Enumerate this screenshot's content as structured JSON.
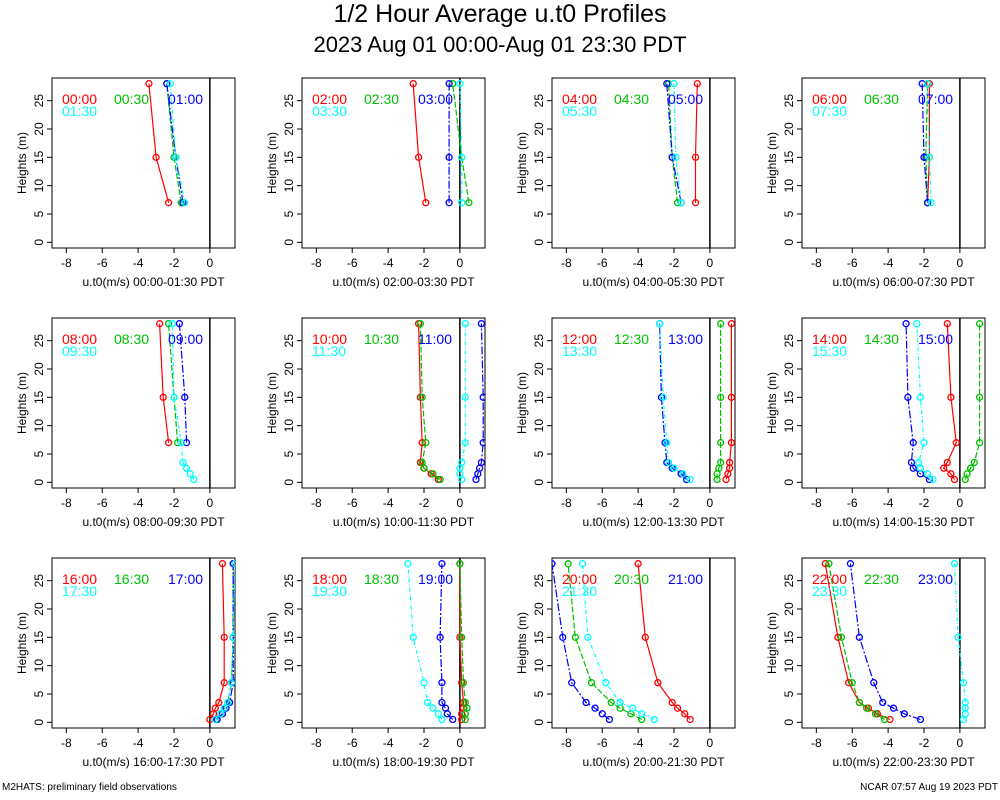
{
  "title_line1": "1/2 Hour Average u.t0 Profiles",
  "title_line2": "2023 Aug 01 00:00-Aug 01 23:30 PDT",
  "footer_left": "M2HATS: preliminary field observations",
  "footer_right": "NCAR 07:57 Aug 19 2023 PDT",
  "colors": {
    "first": "#ff0000",
    "second": "#00c000",
    "third": "#0000ff",
    "fourth": "#00ffff"
  },
  "chart_data": {
    "type": "line",
    "ylabel": "Heights (m)",
    "xlim": [
      -8.8,
      1.4
    ],
    "ylim": [
      -1,
      29
    ],
    "xticks": [
      -8,
      -6,
      -4,
      -2,
      0
    ],
    "yticks": [
      0,
      5,
      10,
      15,
      20,
      25
    ],
    "panels": [
      {
        "xlabel": "u.t0(m/s) 00:00-01:30 PDT",
        "series": [
          {
            "name": "00:00",
            "color": "#ff0000",
            "x": [
              -2.3,
              -3.0,
              -3.4
            ],
            "y": [
              7,
              15,
              28
            ]
          },
          {
            "name": "00:30",
            "color": "#00c000",
            "x": [
              -1.6,
              -2.0,
              -2.4
            ],
            "y": [
              7,
              15,
              28
            ]
          },
          {
            "name": "01:00",
            "color": "#0000ff",
            "x": [
              -1.5,
              -1.9,
              -2.4
            ],
            "y": [
              7,
              15,
              28
            ]
          },
          {
            "name": "01:30",
            "color": "#00ffff",
            "x": [
              -1.4,
              -1.9,
              -2.2
            ],
            "y": [
              7,
              15,
              28
            ]
          }
        ]
      },
      {
        "xlabel": "u.t0(m/s) 02:00-03:30 PDT",
        "series": [
          {
            "name": "02:00",
            "color": "#ff0000",
            "x": [
              -1.9,
              -2.3,
              -2.6
            ],
            "y": [
              7,
              15,
              28
            ]
          },
          {
            "name": "02:30",
            "color": "#00c000",
            "x": [
              0.5,
              0.1,
              -0.4
            ],
            "y": [
              7,
              15,
              28
            ]
          },
          {
            "name": "03:00",
            "color": "#0000ff",
            "x": [
              -0.6,
              -0.6,
              -0.6
            ],
            "y": [
              7,
              15,
              28
            ]
          },
          {
            "name": "03:30",
            "color": "#00ffff",
            "x": [
              0.1,
              0.1,
              0.0
            ],
            "y": [
              7,
              15,
              28
            ]
          }
        ]
      },
      {
        "xlabel": "u.t0(m/s) 04:00-05:30 PDT",
        "series": [
          {
            "name": "04:00",
            "color": "#ff0000",
            "x": [
              -0.8,
              -0.8,
              -0.7
            ],
            "y": [
              7,
              15,
              28
            ]
          },
          {
            "name": "04:30",
            "color": "#00c000",
            "x": [
              -1.8,
              -2.1,
              -2.3
            ],
            "y": [
              7,
              15,
              28
            ]
          },
          {
            "name": "05:00",
            "color": "#0000ff",
            "x": [
              -1.6,
              -2.1,
              -2.4
            ],
            "y": [
              7,
              15,
              28
            ]
          },
          {
            "name": "05:30",
            "color": "#00ffff",
            "x": [
              -1.6,
              -1.9,
              -2.0
            ],
            "y": [
              7,
              15,
              28
            ]
          }
        ]
      },
      {
        "xlabel": "u.t0(m/s) 06:00-07:30 PDT",
        "series": [
          {
            "name": "06:00",
            "color": "#ff0000",
            "x": [
              -1.8,
              -1.7,
              -1.7
            ],
            "y": [
              7,
              15,
              28
            ]
          },
          {
            "name": "06:30",
            "color": "#00c000",
            "x": [
              -1.8,
              -1.9,
              -1.8
            ],
            "y": [
              7,
              15,
              28
            ]
          },
          {
            "name": "07:00",
            "color": "#0000ff",
            "x": [
              -1.8,
              -2.0,
              -2.1
            ],
            "y": [
              7,
              15,
              28
            ]
          },
          {
            "name": "07:30",
            "color": "#00ffff",
            "x": [
              -1.6,
              -1.7,
              -1.8
            ],
            "y": [
              7,
              15,
              28
            ]
          }
        ]
      },
      {
        "xlabel": "u.t0(m/s) 08:00-09:30 PDT",
        "series": [
          {
            "name": "08:00",
            "color": "#ff0000",
            "x": [
              -2.3,
              -2.6,
              -2.8
            ],
            "y": [
              7,
              15,
              28
            ]
          },
          {
            "name": "08:30",
            "color": "#00c000",
            "x": [
              -1.8,
              -2.0,
              -2.3
            ],
            "y": [
              7,
              15,
              28
            ]
          },
          {
            "name": "09:00",
            "color": "#0000ff",
            "x": [
              -1.3,
              -1.4,
              -1.7
            ],
            "y": [
              7,
              15,
              28
            ]
          },
          {
            "name": "09:30",
            "color": "#00ffff",
            "x": [
              -0.9,
              -1.1,
              -1.3,
              -1.5,
              -1.6,
              -2.0,
              -2.1,
              -2.1
            ],
            "y": [
              0.5,
              1.5,
              2.5,
              3.5,
              7,
              15,
              28,
              28
            ]
          }
        ]
      },
      {
        "xlabel": "u.t0(m/s) 10:00-11:30 PDT",
        "series": [
          {
            "name": "10:00",
            "color": "#ff0000",
            "x": [
              -1.2,
              -1.6,
              -2.0,
              -2.2,
              -2.1,
              -2.2,
              -2.3
            ],
            "y": [
              0.5,
              1.5,
              2.5,
              3.5,
              7,
              15,
              28
            ]
          },
          {
            "name": "10:30",
            "color": "#00c000",
            "x": [
              -1.1,
              -1.5,
              -2.0,
              -2.1,
              -1.9,
              -2.1,
              -2.2
            ],
            "y": [
              0.5,
              1.5,
              2.5,
              3.5,
              7,
              15,
              28
            ]
          },
          {
            "name": "11:00",
            "color": "#0000ff",
            "x": [
              0.9,
              1.0,
              1.1,
              1.2,
              1.3,
              1.3,
              1.2
            ],
            "y": [
              0.5,
              1.5,
              2.5,
              3.5,
              7,
              15,
              28
            ]
          },
          {
            "name": "11:30",
            "color": "#00ffff",
            "x": [
              0.1,
              0.0,
              0.0,
              0.1,
              0.3,
              0.3,
              0.3
            ],
            "y": [
              0.5,
              1.5,
              2.5,
              3.5,
              7,
              15,
              28
            ]
          }
        ]
      },
      {
        "xlabel": "u.t0(m/s) 12:00-13:30 PDT",
        "series": [
          {
            "name": "12:00",
            "color": "#ff0000",
            "x": [
              0.9,
              1.0,
              1.1,
              1.1,
              1.2,
              1.2,
              1.2
            ],
            "y": [
              0.5,
              1.5,
              2.5,
              3.5,
              7,
              15,
              28
            ]
          },
          {
            "name": "12:30",
            "color": "#00c000",
            "x": [
              0.4,
              0.4,
              0.5,
              0.6,
              0.6,
              0.6,
              0.6
            ],
            "y": [
              0.5,
              1.5,
              2.5,
              3.5,
              7,
              15,
              28
            ]
          },
          {
            "name": "13:00",
            "color": "#0000ff",
            "x": [
              -1.3,
              -1.6,
              -2.1,
              -2.4,
              -2.5,
              -2.7,
              -2.8
            ],
            "y": [
              0.5,
              1.5,
              2.5,
              3.5,
              7,
              15,
              28
            ]
          },
          {
            "name": "13:30",
            "color": "#00ffff",
            "x": [
              -1.1,
              -1.5,
              -2.0,
              -2.3,
              -2.4,
              -2.6,
              -2.8
            ],
            "y": [
              0.5,
              1.5,
              2.5,
              3.5,
              7,
              15,
              28
            ]
          }
        ]
      },
      {
        "xlabel": "u.t0(m/s) 14:00-15:30 PDT",
        "series": [
          {
            "name": "14:00",
            "color": "#ff0000",
            "x": [
              -0.3,
              -0.5,
              -0.9,
              -0.7,
              -0.2,
              -0.5,
              -0.7
            ],
            "y": [
              0.5,
              1.5,
              2.5,
              3.5,
              7,
              15,
              28
            ]
          },
          {
            "name": "14:30",
            "color": "#00c000",
            "x": [
              0.3,
              0.4,
              0.6,
              0.8,
              1.1,
              1.1,
              1.1
            ],
            "y": [
              0.5,
              1.5,
              2.5,
              3.5,
              7,
              15,
              28
            ]
          },
          {
            "name": "15:00",
            "color": "#0000ff",
            "x": [
              -1.7,
              -2.2,
              -2.6,
              -2.7,
              -2.6,
              -2.9,
              -3.0
            ],
            "y": [
              0.5,
              1.5,
              2.5,
              3.5,
              7,
              15,
              28
            ]
          },
          {
            "name": "15:30",
            "color": "#00ffff",
            "x": [
              -1.5,
              -1.8,
              -2.2,
              -2.3,
              -2.0,
              -2.2,
              -2.4
            ],
            "y": [
              0.5,
              1.5,
              2.5,
              3.5,
              7,
              15,
              28
            ]
          }
        ]
      },
      {
        "xlabel": "u.t0(m/s) 16:00-17:30 PDT",
        "series": [
          {
            "name": "16:00",
            "color": "#ff0000",
            "x": [
              0.0,
              0.2,
              0.3,
              0.5,
              0.8,
              0.8,
              0.7
            ],
            "y": [
              0.5,
              1.5,
              2.5,
              3.5,
              7,
              15,
              28
            ]
          },
          {
            "name": "16:30",
            "color": "#00c000",
            "x": [
              0.4,
              0.6,
              0.8,
              1.0,
              1.2,
              1.3,
              1.3
            ],
            "y": [
              0.5,
              1.5,
              2.5,
              3.5,
              7,
              15,
              28
            ]
          },
          {
            "name": "17:00",
            "color": "#0000ff",
            "x": [
              0.4,
              0.7,
              0.9,
              1.1,
              1.3,
              1.3,
              1.3
            ],
            "y": [
              0.5,
              1.5,
              2.5,
              3.5,
              7,
              15,
              28
            ]
          },
          {
            "name": "17:30",
            "color": "#00ffff",
            "x": [
              0.3,
              0.6,
              0.8,
              1.0,
              1.2,
              1.3,
              1.4
            ],
            "y": [
              0.5,
              1.5,
              2.5,
              3.5,
              7,
              15,
              28
            ]
          }
        ]
      },
      {
        "xlabel": "u.t0(m/s) 18:00-19:30 PDT",
        "series": [
          {
            "name": "18:00",
            "color": "#ff0000",
            "x": [
              0.1,
              0.1,
              0.2,
              0.2,
              0.1,
              0.0,
              0.0
            ],
            "y": [
              0.5,
              1.5,
              2.5,
              3.5,
              7,
              15,
              28
            ]
          },
          {
            "name": "18:30",
            "color": "#00c000",
            "x": [
              0.3,
              0.3,
              0.4,
              0.3,
              0.2,
              0.1,
              0.0
            ],
            "y": [
              0.5,
              1.5,
              2.5,
              3.5,
              7,
              15,
              28
            ]
          },
          {
            "name": "19:00",
            "color": "#0000ff",
            "x": [
              -0.4,
              -0.7,
              -0.8,
              -1.0,
              -1.0,
              -1.1,
              -1.0
            ],
            "y": [
              0.5,
              1.5,
              2.5,
              3.5,
              7,
              15,
              28
            ]
          },
          {
            "name": "19:30",
            "color": "#00ffff",
            "x": [
              -1.0,
              -1.2,
              -1.5,
              -1.8,
              -2.0,
              -2.6,
              -2.9
            ],
            "y": [
              0.5,
              1.5,
              2.5,
              3.5,
              7,
              15,
              28
            ]
          }
        ]
      },
      {
        "xlabel": "u.t0(m/s) 20:00-21:30 PDT",
        "series": [
          {
            "name": "20:00",
            "color": "#ff0000",
            "x": [
              -1.1,
              -1.4,
              -1.8,
              -2.1,
              -2.9,
              -3.6,
              -4.0
            ],
            "y": [
              0.5,
              1.5,
              2.5,
              3.5,
              7,
              15,
              28
            ]
          },
          {
            "name": "20:30",
            "color": "#00c000",
            "x": [
              -3.8,
              -4.4,
              -5.0,
              -5.5,
              -6.6,
              -7.5,
              -7.9
            ],
            "y": [
              0.5,
              1.5,
              2.5,
              3.5,
              7,
              15,
              28
            ]
          },
          {
            "name": "21:00",
            "color": "#0000ff",
            "x": [
              -5.6,
              -6.0,
              -6.4,
              -6.9,
              -7.7,
              -8.2,
              -8.8
            ],
            "y": [
              0.5,
              1.5,
              2.5,
              3.5,
              7,
              15,
              28
            ]
          },
          {
            "name": "21:30",
            "color": "#00ffff",
            "x": [
              -3.1,
              -3.8,
              -4.3,
              -5.0,
              -5.8,
              -6.8,
              -7.1
            ],
            "y": [
              0.5,
              1.5,
              2.5,
              3.5,
              7,
              15,
              28
            ]
          }
        ]
      },
      {
        "xlabel": "u.t0(m/s) 22:00-23:30 PDT",
        "series": [
          {
            "name": "22:00",
            "color": "#ff0000",
            "x": [
              -3.9,
              -4.6,
              -5.1,
              -5.6,
              -6.2,
              -6.8,
              -7.5
            ],
            "y": [
              0.5,
              1.5,
              2.5,
              3.5,
              7,
              15,
              28
            ]
          },
          {
            "name": "22:30",
            "color": "#00c000",
            "x": [
              -4.2,
              -4.7,
              -5.2,
              -5.6,
              -6.0,
              -6.6,
              -7.3
            ],
            "y": [
              0.5,
              1.5,
              2.5,
              3.5,
              7,
              15,
              28
            ]
          },
          {
            "name": "23:00",
            "color": "#0000ff",
            "x": [
              -2.2,
              -3.1,
              -3.7,
              -4.3,
              -4.8,
              -5.6,
              -6.1
            ],
            "y": [
              0.5,
              1.5,
              2.5,
              3.5,
              7,
              15,
              28
            ]
          },
          {
            "name": "23:30",
            "color": "#00ffff",
            "x": [
              0.2,
              0.3,
              0.3,
              0.3,
              0.2,
              -0.1,
              -0.3
            ],
            "y": [
              0.5,
              1.5,
              2.5,
              3.5,
              7,
              15,
              28
            ]
          }
        ]
      }
    ]
  }
}
